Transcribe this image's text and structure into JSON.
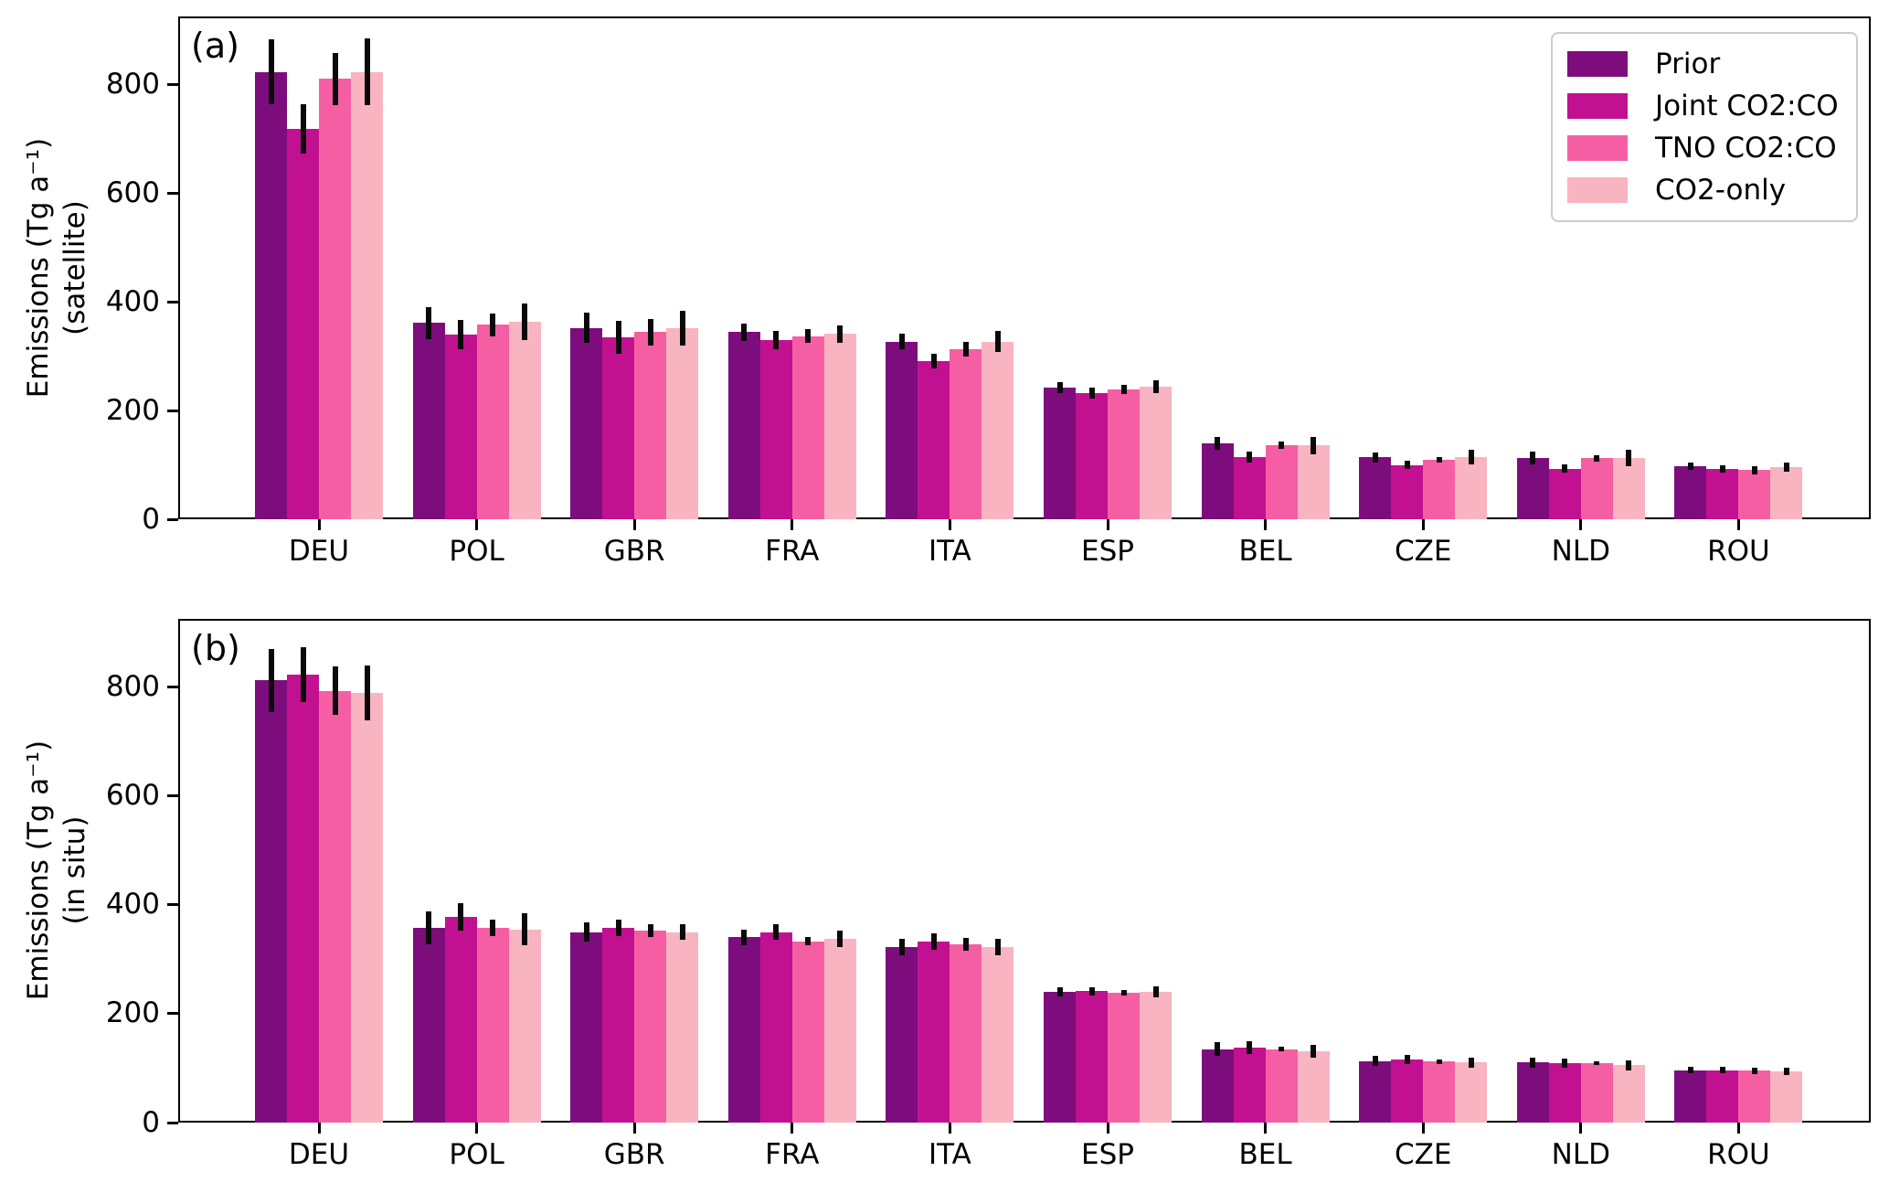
{
  "figure": {
    "background": "#ffffff",
    "error_bar_color": "#0a0a0a",
    "legend_border_color": "#cccccc"
  },
  "chart_data": [
    {
      "type": "bar",
      "panel_label": "(a)",
      "ylabel_line1": "Emissions (Tg a⁻¹)",
      "ylabel_line2": "(satellite)",
      "xlabel": "",
      "categories": [
        "DEU",
        "POL",
        "GBR",
        "FRA",
        "ITA",
        "ESP",
        "BEL",
        "CZE",
        "NLD",
        "ROU"
      ],
      "yticks": [
        "0",
        "200",
        "400",
        "600",
        "800"
      ],
      "ylim": [
        0,
        925
      ],
      "grid": false,
      "legend_position": "upper right",
      "show_legend": true,
      "series": [
        {
          "name": "Prior",
          "color": "#7D0D7C",
          "values": [
            823,
            361,
            352,
            344,
            327,
            242,
            139,
            114,
            113,
            97
          ],
          "errors": [
            60,
            30,
            28,
            16,
            15,
            10,
            12,
            9,
            12,
            7
          ]
        },
        {
          "name": "Joint CO2:CO",
          "color": "#C21190",
          "values": [
            718,
            339,
            335,
            330,
            291,
            232,
            114,
            100,
            93,
            93
          ],
          "errors": [
            45,
            27,
            30,
            17,
            14,
            10,
            10,
            8,
            8,
            7
          ]
        },
        {
          "name": "TNO CO2:CO",
          "color": "#F65EA4",
          "values": [
            810,
            358,
            344,
            337,
            313,
            239,
            136,
            110,
            112,
            90
          ],
          "errors": [
            48,
            21,
            24,
            12,
            13,
            8,
            7,
            5,
            6,
            8
          ]
        },
        {
          "name": "CO2-only",
          "color": "#F9B4C1",
          "values": [
            823,
            363,
            352,
            341,
            327,
            244,
            136,
            114,
            112,
            96
          ],
          "errors": [
            61,
            34,
            32,
            16,
            20,
            12,
            16,
            13,
            15,
            9
          ]
        }
      ]
    },
    {
      "type": "bar",
      "panel_label": "(b)",
      "ylabel_line1": "Emissions (Tg a⁻¹)",
      "ylabel_line2": "(in situ)",
      "xlabel": "",
      "categories": [
        "DEU",
        "POL",
        "GBR",
        "FRA",
        "ITA",
        "ESP",
        "BEL",
        "CZE",
        "NLD",
        "ROU"
      ],
      "yticks": [
        "0",
        "200",
        "400",
        "600",
        "800"
      ],
      "ylim": [
        0,
        925
      ],
      "grid": false,
      "legend_position": "none",
      "show_legend": false,
      "series": [
        {
          "name": "Prior",
          "color": "#7D0D7C",
          "values": [
            812,
            358,
            350,
            340,
            323,
            240,
            135,
            113,
            110,
            96
          ],
          "errors": [
            58,
            30,
            18,
            15,
            15,
            8,
            12,
            9,
            9,
            6
          ]
        },
        {
          "name": "Joint CO2:CO",
          "color": "#C21190",
          "values": [
            823,
            378,
            357,
            350,
            333,
            241,
            138,
            116,
            109,
            96
          ],
          "errors": [
            50,
            25,
            15,
            15,
            15,
            8,
            12,
            9,
            9,
            6
          ]
        },
        {
          "name": "TNO CO2:CO",
          "color": "#F65EA4",
          "values": [
            793,
            358,
            352,
            333,
            327,
            238,
            135,
            112,
            109,
            95
          ],
          "errors": [
            45,
            15,
            12,
            8,
            12,
            5,
            4,
            4,
            3,
            6
          ]
        },
        {
          "name": "CO2-only",
          "color": "#F9B4C1",
          "values": [
            789,
            355,
            350,
            338,
            323,
            240,
            131,
            110,
            105,
            94
          ],
          "errors": [
            50,
            30,
            15,
            15,
            15,
            10,
            12,
            9,
            9,
            7
          ]
        }
      ]
    }
  ]
}
